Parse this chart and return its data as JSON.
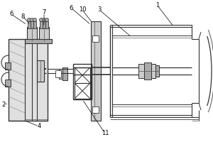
{
  "bg": "white",
  "lc": "#555555",
  "dc": "#333333",
  "gray1": "#cccccc",
  "gray2": "#aaaaaa",
  "gray3": "#e0e0e0",
  "gray4": "#888888"
}
